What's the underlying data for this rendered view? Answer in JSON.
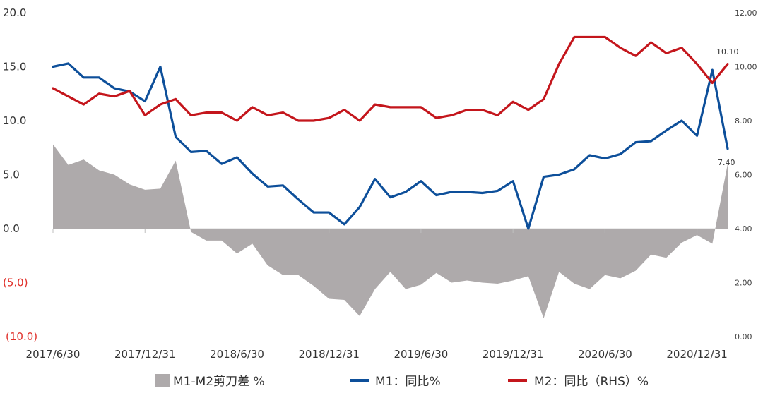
{
  "chart_data": {
    "type": "line",
    "title": "",
    "x": [
      "2017/6/30",
      "2017/7/31",
      "2017/8/31",
      "2017/9/30",
      "2017/10/31",
      "2017/11/30",
      "2017/12/31",
      "2018/1/31",
      "2018/2/28",
      "2018/3/31",
      "2018/4/30",
      "2018/5/31",
      "2018/6/30",
      "2018/7/31",
      "2018/8/31",
      "2018/9/30",
      "2018/10/31",
      "2018/11/30",
      "2018/12/31",
      "2019/1/31",
      "2019/2/28",
      "2019/3/31",
      "2019/4/30",
      "2019/5/31",
      "2019/6/30",
      "2019/7/31",
      "2019/8/31",
      "2019/9/30",
      "2019/10/31",
      "2019/11/30",
      "2019/12/31",
      "2020/1/31",
      "2020/2/29",
      "2020/3/31",
      "2020/4/30",
      "2020/5/31",
      "2020/6/30",
      "2020/7/31",
      "2020/8/31",
      "2020/9/30",
      "2020/10/31",
      "2020/11/30",
      "2020/12/31",
      "2021/1/31",
      "2021/2/28"
    ],
    "x_tick_labels": [
      "2017/6/30",
      "2017/12/31",
      "2018/6/30",
      "2018/12/31",
      "2019/6/30",
      "2019/12/31",
      "2020/6/30",
      "2020/12/31"
    ],
    "left_axis": {
      "ylim": [
        -10,
        20
      ],
      "ticks": [
        "20.0",
        "15.0",
        "10.0",
        "5.0",
        "0.0",
        "(5.0)",
        "(10.0)"
      ],
      "negative_color": "#e0302a"
    },
    "right_axis": {
      "ylim": [
        0,
        12
      ],
      "ticks": [
        "12.00",
        "10.00",
        "8.00",
        "6.00",
        "4.00",
        "2.00",
        "0.00"
      ]
    },
    "series": [
      {
        "name": "M1-M2剪刀差 %",
        "type": "area",
        "axis": "left",
        "color": "#aeaaab",
        "values": [
          7.8,
          5.9,
          6.4,
          5.4,
          5.0,
          4.1,
          3.6,
          3.7,
          6.3,
          -0.3,
          -1.1,
          -1.1,
          -2.3,
          -1.4,
          -3.4,
          -4.3,
          -4.3,
          -5.3,
          -6.5,
          -6.6,
          -8.1,
          -5.6,
          -4.0,
          -5.6,
          -5.2,
          -4.1,
          -5.0,
          -4.8,
          -5.0,
          -5.1,
          -4.8,
          -4.4,
          -8.3,
          -4.0,
          -5.1,
          -5.6,
          -4.3,
          -4.6,
          -3.9,
          -2.4,
          -2.7,
          -1.3,
          -0.6,
          -1.4,
          6.0
        ]
      },
      {
        "name": "M1：同比%",
        "type": "line",
        "axis": "left",
        "color": "#0d4f9a",
        "values": [
          15.0,
          15.3,
          14.0,
          14.0,
          13.0,
          12.7,
          11.8,
          15.0,
          8.5,
          7.1,
          7.2,
          6.0,
          6.6,
          5.1,
          3.9,
          4.0,
          2.7,
          1.5,
          1.5,
          0.4,
          2.0,
          4.6,
          2.9,
          3.4,
          4.4,
          3.1,
          3.4,
          3.4,
          3.3,
          3.5,
          4.4,
          0.0,
          4.8,
          5.0,
          5.5,
          6.8,
          6.5,
          6.9,
          8.0,
          8.1,
          9.1,
          10.0,
          8.6,
          14.7,
          7.4
        ]
      },
      {
        "name": "M2：同比（RHS）%",
        "type": "line",
        "axis": "right",
        "color": "#c4161c",
        "values": [
          9.2,
          8.9,
          8.6,
          9.0,
          8.9,
          9.1,
          8.2,
          8.6,
          8.8,
          8.2,
          8.3,
          8.3,
          8.0,
          8.5,
          8.2,
          8.3,
          8.0,
          8.0,
          8.1,
          8.4,
          8.0,
          8.6,
          8.5,
          8.5,
          8.5,
          8.1,
          8.2,
          8.4,
          8.4,
          8.2,
          8.7,
          8.4,
          8.8,
          10.1,
          11.1,
          11.1,
          11.1,
          10.7,
          10.4,
          10.9,
          10.5,
          10.7,
          10.1,
          9.4,
          10.1
        ]
      }
    ],
    "end_labels": {
      "m2_last": "10.10",
      "m1_last": "7.40"
    }
  },
  "legend": [
    {
      "label": "M1-M2剪刀差 %",
      "swatch": "area",
      "color": "#aeaaab"
    },
    {
      "label": "M1：同比%",
      "swatch": "line",
      "color": "#0d4f9a"
    },
    {
      "label": "M2：同比（RHS）%",
      "swatch": "line",
      "color": "#c4161c"
    }
  ]
}
